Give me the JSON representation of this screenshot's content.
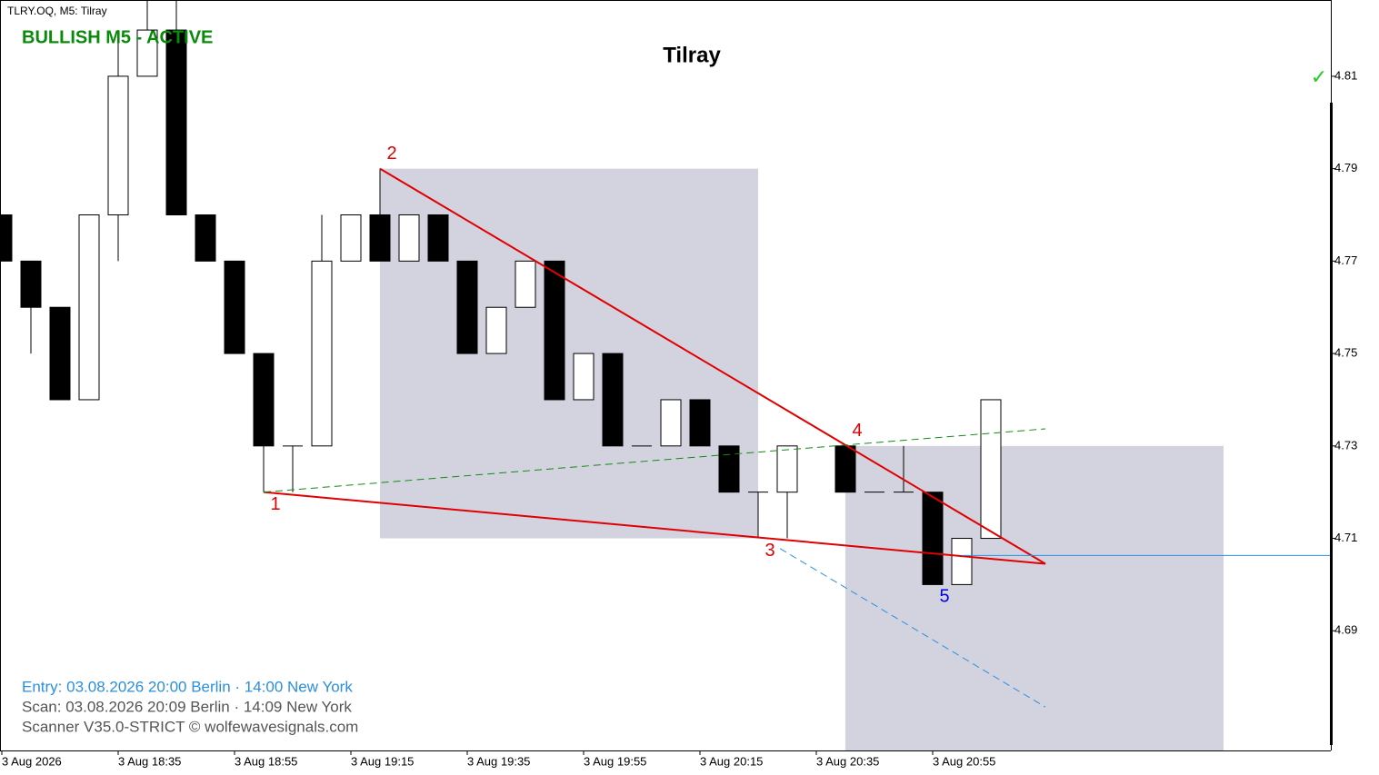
{
  "chart_data": {
    "type": "candlestick",
    "symbol_label": "TLRY.OQ, M5:  Tilray",
    "title": "Tilray",
    "status": "BULLISH M5 - ACTIVE",
    "status_icon": "✓",
    "info_lines": [
      "Entry: 03.08.2026  20:00 Berlin · 14:00 New York",
      "Scan:  03.08.2026  20:09 Berlin · 14:09 New York",
      "Scanner V35.0-STRICT   © wolfewavesignals.com"
    ],
    "x": [
      0,
      1,
      2,
      3,
      4,
      5,
      6,
      7,
      8,
      9,
      10,
      11,
      12,
      13,
      14,
      15,
      16,
      17,
      18,
      19,
      20,
      21,
      22,
      23,
      24,
      25,
      26,
      27,
      29,
      30,
      31,
      32,
      33,
      34
    ],
    "open": [
      4.78,
      4.77,
      4.76,
      4.74,
      4.78,
      4.81,
      4.82,
      4.78,
      4.77,
      4.75,
      4.73,
      4.73,
      4.77,
      4.78,
      4.77,
      4.78,
      4.77,
      4.75,
      4.76,
      4.77,
      4.74,
      4.75,
      4.73,
      4.73,
      4.74,
      4.73,
      4.72,
      4.72,
      4.73,
      4.72,
      4.72,
      4.72,
      4.7,
      4.71
    ],
    "high": [
      4.78,
      4.77,
      4.76,
      4.78,
      4.82,
      4.83,
      4.83,
      4.78,
      4.77,
      4.75,
      4.73,
      4.78,
      4.78,
      4.79,
      4.78,
      4.78,
      4.77,
      4.76,
      4.77,
      4.77,
      4.75,
      4.75,
      4.73,
      4.74,
      4.74,
      4.73,
      4.72,
      4.73,
      4.73,
      4.72,
      4.73,
      4.72,
      4.71,
      4.74
    ],
    "low": [
      4.77,
      4.75,
      4.74,
      4.74,
      4.77,
      4.81,
      4.78,
      4.77,
      4.75,
      4.72,
      4.72,
      4.73,
      4.77,
      4.77,
      4.77,
      4.77,
      4.75,
      4.75,
      4.76,
      4.74,
      4.74,
      4.73,
      4.73,
      4.73,
      4.73,
      4.72,
      4.71,
      4.71,
      4.72,
      4.72,
      4.72,
      4.7,
      4.7,
      4.71
    ],
    "close": [
      4.77,
      4.76,
      4.74,
      4.78,
      4.81,
      4.82,
      4.78,
      4.77,
      4.75,
      4.73,
      4.73,
      4.77,
      4.78,
      4.77,
      4.78,
      4.77,
      4.75,
      4.76,
      4.77,
      4.74,
      4.75,
      4.73,
      4.73,
      4.74,
      4.73,
      4.72,
      4.72,
      4.73,
      4.72,
      4.72,
      4.72,
      4.7,
      4.71,
      4.74
    ],
    "up_color": "#ffffff",
    "down_color": "#000000",
    "xlim": [
      -0.0625,
      45.6875
    ],
    "ylim": [
      4.6641,
      4.8265
    ],
    "yticks": [
      4.69,
      4.71,
      4.73,
      4.75,
      4.77,
      4.79,
      4.81
    ],
    "xticks": [
      {
        "value": 0,
        "label": "3 Aug 2026"
      },
      {
        "value": 4,
        "label": "3 Aug 18:35"
      },
      {
        "value": 8,
        "label": "3 Aug 18:55"
      },
      {
        "value": 12,
        "label": "3 Aug 19:15"
      },
      {
        "value": 16,
        "label": "3 Aug 19:35"
      },
      {
        "value": 20,
        "label": "3 Aug 19:55"
      },
      {
        "value": 24,
        "label": "3 Aug 20:15"
      },
      {
        "value": 28,
        "label": "3 Aug 20:35"
      },
      {
        "value": 32,
        "label": "3 Aug 20:55"
      }
    ],
    "zones": [
      {
        "x": [
          13,
          26
        ],
        "y": [
          4.79,
          4.71
        ],
        "color": "#d3d3e0"
      },
      {
        "x": [
          29,
          42
        ],
        "y": [
          4.73,
          4.66
        ],
        "color": "#d3d3e0"
      }
    ],
    "lines": [
      {
        "x": [
          9,
          35.875,
          13
        ],
        "y": [
          4.72,
          4.7045,
          4.79
        ],
        "color": "#e00000",
        "width": 2,
        "dash": false
      },
      {
        "x": [
          9,
          35.875
        ],
        "y": [
          4.72,
          4.7337
        ],
        "color": "#138a13",
        "width": 1,
        "dash": true
      },
      {
        "x": [
          26.75,
          35.875
        ],
        "y": [
          4.7078,
          4.6735
        ],
        "color": "#2a8fe0",
        "width": 1,
        "dash": true
      },
      {
        "x": [
          33,
          46
        ],
        "y": [
          4.7063,
          4.7063
        ],
        "color": "#2a8fe0",
        "width": 1,
        "dash": false
      }
    ],
    "points": [
      {
        "label": "1",
        "x": 9,
        "y": 4.72,
        "pos": "below",
        "color": "#e00000"
      },
      {
        "label": "2",
        "x": 13,
        "y": 4.79,
        "pos": "above",
        "color": "#e00000"
      },
      {
        "label": "3",
        "x": 26,
        "y": 4.71,
        "pos": "below",
        "color": "#e00000"
      },
      {
        "label": "4",
        "x": 29,
        "y": 4.73,
        "pos": "above",
        "color": "#e00000"
      },
      {
        "label": "5",
        "x": 32,
        "y": 4.7,
        "pos": "below",
        "color": "#0000ee"
      }
    ]
  }
}
